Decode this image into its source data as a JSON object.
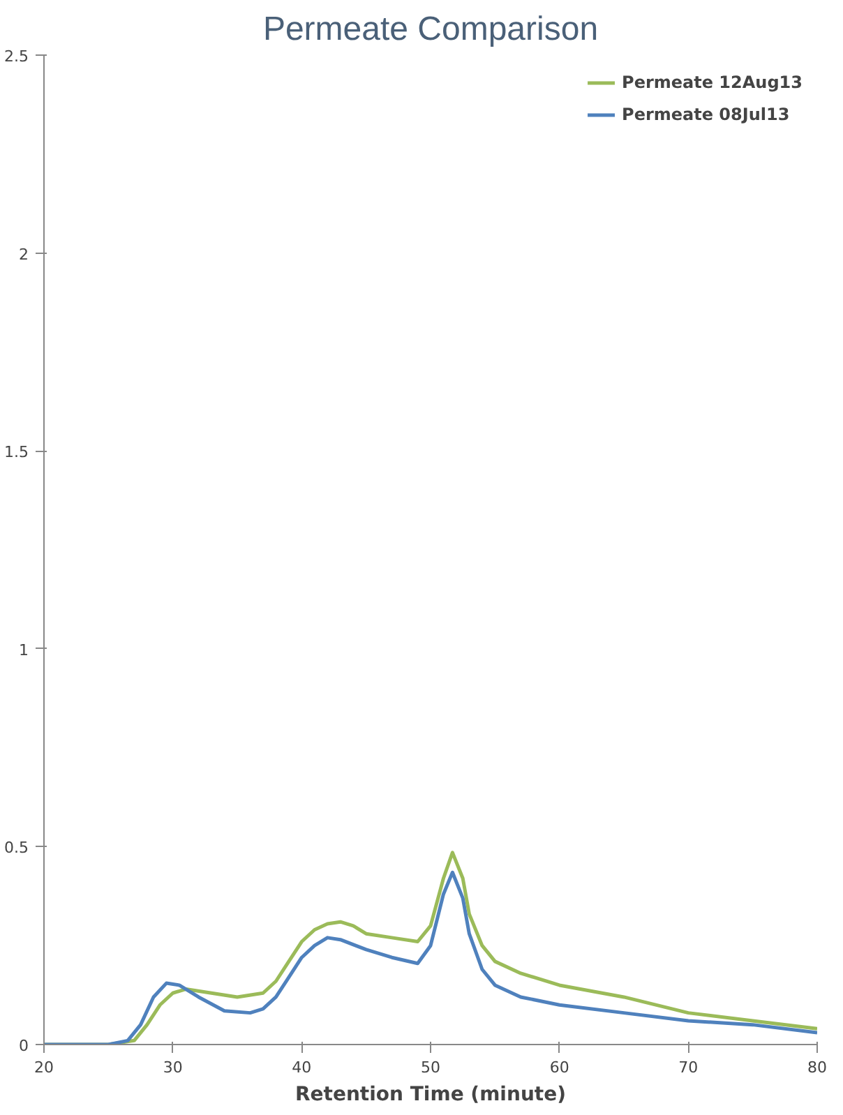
{
  "chart_data": {
    "type": "line",
    "title": "Permeate Comparison",
    "xlabel": "Retention Time (minute)",
    "xlim": [
      20,
      80
    ],
    "xticks": [
      20,
      30,
      40,
      50,
      60,
      70,
      80
    ],
    "ylim": [
      0,
      2.5
    ],
    "yticks": [
      0,
      0.5,
      1,
      1.5,
      2,
      2.5
    ],
    "grid": false,
    "legend": "top right",
    "marker": "none",
    "line_style": "solid",
    "series": [
      {
        "name": "Permeate 12Aug13",
        "color": "#9bbb59",
        "x": [
          20,
          25,
          27,
          28,
          29,
          30,
          31,
          33,
          35,
          37,
          38,
          39,
          40,
          41,
          42,
          43,
          44,
          45,
          47,
          49,
          50,
          51,
          51.7,
          52.5,
          53,
          54,
          55,
          57,
          60,
          65,
          70,
          75,
          80
        ],
        "values": [
          0,
          0,
          0.01,
          0.05,
          0.1,
          0.13,
          0.14,
          0.13,
          0.12,
          0.13,
          0.16,
          0.21,
          0.26,
          0.29,
          0.305,
          0.31,
          0.3,
          0.28,
          0.27,
          0.26,
          0.3,
          0.42,
          0.485,
          0.42,
          0.33,
          0.25,
          0.21,
          0.18,
          0.15,
          0.12,
          0.08,
          0.06,
          0.04
        ]
      },
      {
        "name": "Permeate 08Jul13",
        "color": "#4f81bd",
        "x": [
          20,
          25,
          26.5,
          27.5,
          28.5,
          29.5,
          30.5,
          32,
          34,
          36,
          37,
          38,
          39,
          40,
          41,
          42,
          43,
          45,
          47,
          49,
          50,
          51,
          51.7,
          52.5,
          53,
          54,
          55,
          57,
          60,
          65,
          70,
          75,
          80
        ],
        "values": [
          0,
          0,
          0.01,
          0.05,
          0.12,
          0.155,
          0.15,
          0.12,
          0.085,
          0.08,
          0.09,
          0.12,
          0.17,
          0.22,
          0.25,
          0.27,
          0.265,
          0.24,
          0.22,
          0.205,
          0.25,
          0.38,
          0.435,
          0.37,
          0.28,
          0.19,
          0.15,
          0.12,
          0.1,
          0.08,
          0.06,
          0.05,
          0.03
        ]
      }
    ]
  }
}
